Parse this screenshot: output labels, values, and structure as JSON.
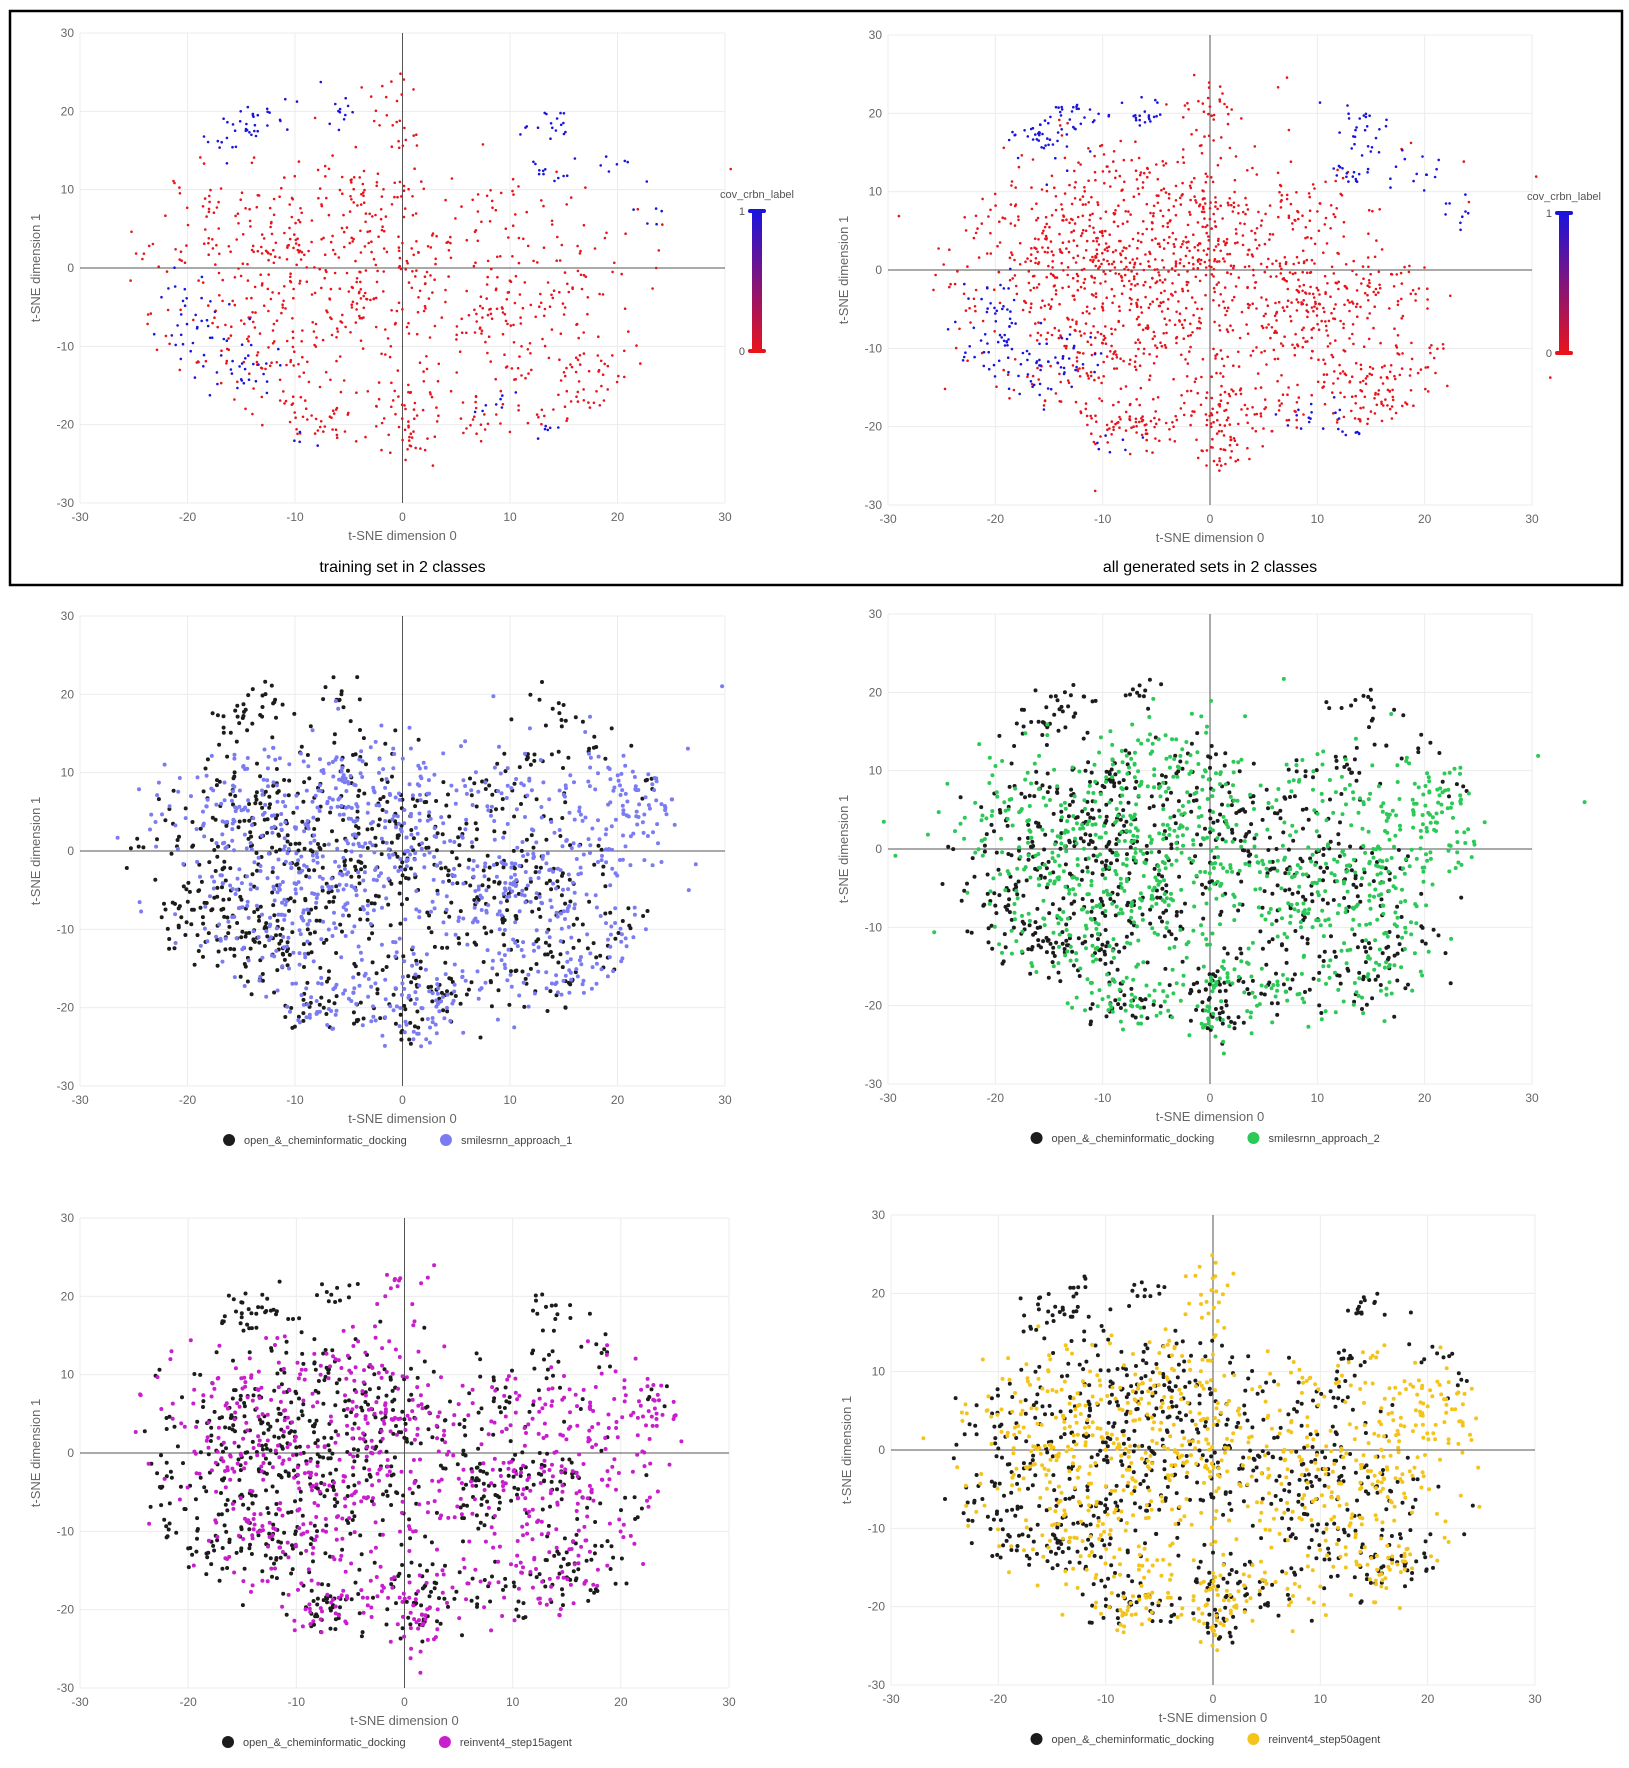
{
  "figure": {
    "colors": {
      "red": "#e8141c",
      "blue": "#1a14dc",
      "black": "#1c1c1c",
      "lavender": "#7b7cf2",
      "green": "#2bc956",
      "magenta": "#c81ecd",
      "gold": "#f5c41a",
      "grid": "#ececec",
      "zero_axis": "#555555",
      "frame": "#000000"
    }
  },
  "chart_data": [
    {
      "id": "training",
      "type": "scatter",
      "xlabel": "t-SNE dimension 0",
      "ylabel": "t-SNE dimension 1",
      "xlim": [
        -30,
        30
      ],
      "ylim": [
        -30,
        30
      ],
      "ticks": [
        -30,
        -20,
        -10,
        0,
        10,
        20,
        30
      ],
      "caption": "training set in 2 classes",
      "colorbar": {
        "title": "cov_crbn_label",
        "max_label": "1",
        "min_label": "0"
      },
      "series": [
        {
          "name": "0",
          "color_key": "red",
          "density": 0.55
        },
        {
          "name": "1",
          "color_key": "blue",
          "density": 0.55
        }
      ]
    },
    {
      "id": "generated",
      "type": "scatter",
      "xlabel": "t-SNE dimension 0",
      "ylabel": "t-SNE dimension 1",
      "xlim": [
        -30,
        30
      ],
      "ylim": [
        -30,
        30
      ],
      "ticks": [
        -30,
        -20,
        -10,
        0,
        10,
        20,
        30
      ],
      "caption": "all generated sets in 2 classes",
      "colorbar": {
        "title": "cov_crbn_label",
        "max_label": "1",
        "min_label": "0"
      },
      "series": [
        {
          "name": "0",
          "color_key": "red",
          "density": 1.0
        },
        {
          "name": "1",
          "color_key": "blue",
          "density": 0.9
        }
      ]
    },
    {
      "id": "approach1",
      "type": "scatter",
      "xlabel": "t-SNE dimension 0",
      "ylabel": "t-SNE dimension 1",
      "xlim": [
        -30,
        30
      ],
      "ylim": [
        -30,
        30
      ],
      "ticks": [
        -30,
        -20,
        -10,
        0,
        10,
        20,
        30
      ],
      "series": [
        {
          "name": "open_&_cheminformatic_docking",
          "color_key": "black",
          "density": 0.5
        },
        {
          "name": "smilesrnn_approach_1",
          "color_key": "lavender",
          "density": 0.6
        }
      ]
    },
    {
      "id": "approach2",
      "type": "scatter",
      "xlabel": "t-SNE dimension 0",
      "ylabel": "t-SNE dimension 1",
      "xlim": [
        -30,
        30
      ],
      "ylim": [
        -30,
        30
      ],
      "ticks": [
        -30,
        -20,
        -10,
        0,
        10,
        20,
        30
      ],
      "series": [
        {
          "name": "open_&_cheminformatic_docking",
          "color_key": "black",
          "density": 0.5
        },
        {
          "name": "smilesrnn_approach_2",
          "color_key": "green",
          "density": 0.6
        }
      ]
    },
    {
      "id": "step15",
      "type": "scatter",
      "xlabel": "t-SNE dimension 0",
      "ylabel": "t-SNE dimension 1",
      "xlim": [
        -30,
        30
      ],
      "ylim": [
        -30,
        30
      ],
      "ticks": [
        -30,
        -20,
        -10,
        0,
        10,
        20,
        30
      ],
      "series": [
        {
          "name": "open_&_cheminformatic_docking",
          "color_key": "black",
          "density": 0.5
        },
        {
          "name": "reinvent4_step15agent",
          "color_key": "magenta",
          "density": 0.5
        }
      ]
    },
    {
      "id": "step50",
      "type": "scatter",
      "xlabel": "t-SNE dimension 0",
      "ylabel": "t-SNE dimension 1",
      "xlim": [
        -30,
        30
      ],
      "ylim": [
        -30,
        30
      ],
      "ticks": [
        -30,
        -20,
        -10,
        0,
        10,
        20,
        30
      ],
      "series": [
        {
          "name": "open_&_cheminformatic_docking",
          "color_key": "black",
          "density": 0.5
        },
        {
          "name": "reinvent4_step50agent",
          "color_key": "gold",
          "density": 0.55
        }
      ]
    }
  ]
}
